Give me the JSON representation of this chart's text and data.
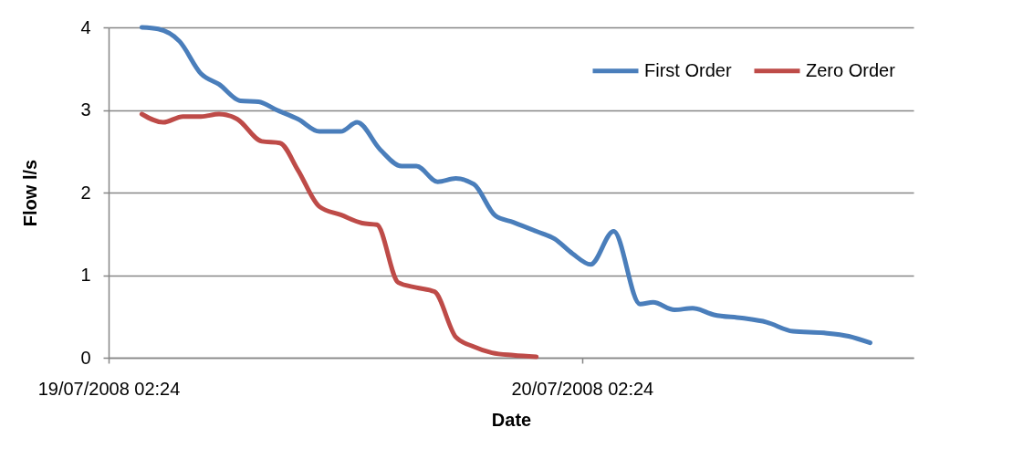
{
  "chart_data": {
    "type": "line",
    "xlabel": "Date",
    "ylabel": "Flow l/s",
    "xlim": [
      "2008-07-19T02:24",
      "2008-07-20T19:12"
    ],
    "xticks": [
      {
        "value": "2008-07-19T02:24",
        "label": "19/07/2008 02:24"
      },
      {
        "value": "2008-07-20T02:24",
        "label": "20/07/2008 02:24"
      }
    ],
    "ylim": [
      0,
      4
    ],
    "yticks": [
      0,
      1,
      2,
      3,
      4
    ],
    "grid": "y",
    "legend": "top right",
    "line_style": "solid",
    "marker": "none",
    "series": [
      {
        "name": "First Order",
        "color": "#4a7ebb",
        "x": [
          "2008-07-19T04:05",
          "2008-07-19T04:55",
          "2008-07-19T06:00",
          "2008-07-19T07:05",
          "2008-07-19T08:00",
          "2008-07-19T09:05",
          "2008-07-19T10:00",
          "2008-07-19T10:55",
          "2008-07-19T12:00",
          "2008-07-19T13:05",
          "2008-07-19T14:10",
          "2008-07-19T15:00",
          "2008-07-19T16:10",
          "2008-07-19T17:15",
          "2008-07-19T18:00",
          "2008-07-19T19:05",
          "2008-07-19T20:00",
          "2008-07-19T20:55",
          "2008-07-19T22:00",
          "2008-07-19T22:55",
          "2008-07-20T00:05",
          "2008-07-20T01:00",
          "2008-07-20T01:55",
          "2008-07-20T02:50",
          "2008-07-20T04:00",
          "2008-07-20T05:20",
          "2008-07-20T06:00",
          "2008-07-20T07:05",
          "2008-07-20T08:00",
          "2008-07-20T09:05",
          "2008-07-20T10:30",
          "2008-07-20T11:45",
          "2008-07-20T13:05",
          "2008-07-20T14:40",
          "2008-07-20T15:55",
          "2008-07-20T17:00"
        ],
        "values": [
          4.0,
          3.98,
          3.83,
          3.44,
          3.31,
          3.11,
          3.1,
          3.0,
          2.89,
          2.74,
          2.74,
          2.85,
          2.52,
          2.32,
          2.32,
          2.13,
          2.17,
          2.1,
          1.72,
          1.64,
          1.53,
          1.44,
          1.26,
          1.13,
          1.53,
          0.65,
          0.67,
          0.58,
          0.6,
          0.52,
          0.48,
          0.43,
          0.32,
          0.3,
          0.26,
          0.18
        ]
      },
      {
        "name": "Zero Order",
        "color": "#be4b48",
        "x": [
          "2008-07-19T04:05",
          "2008-07-19T05:10",
          "2008-07-19T06:10",
          "2008-07-19T07:05",
          "2008-07-19T08:00",
          "2008-07-19T08:55",
          "2008-07-19T10:10",
          "2008-07-19T11:05",
          "2008-07-19T12:00",
          "2008-07-19T13:05",
          "2008-07-19T14:10",
          "2008-07-19T15:15",
          "2008-07-19T16:00",
          "2008-07-19T17:05",
          "2008-07-19T18:00",
          "2008-07-19T18:55",
          "2008-07-19T20:00",
          "2008-07-19T20:50",
          "2008-07-19T21:50",
          "2008-07-19T22:55",
          "2008-07-20T00:05"
        ],
        "values": [
          2.95,
          2.85,
          2.92,
          2.92,
          2.95,
          2.89,
          2.62,
          2.6,
          2.27,
          1.83,
          1.73,
          1.63,
          1.61,
          0.91,
          0.85,
          0.8,
          0.25,
          0.14,
          0.06,
          0.03,
          0.01
        ]
      }
    ]
  }
}
